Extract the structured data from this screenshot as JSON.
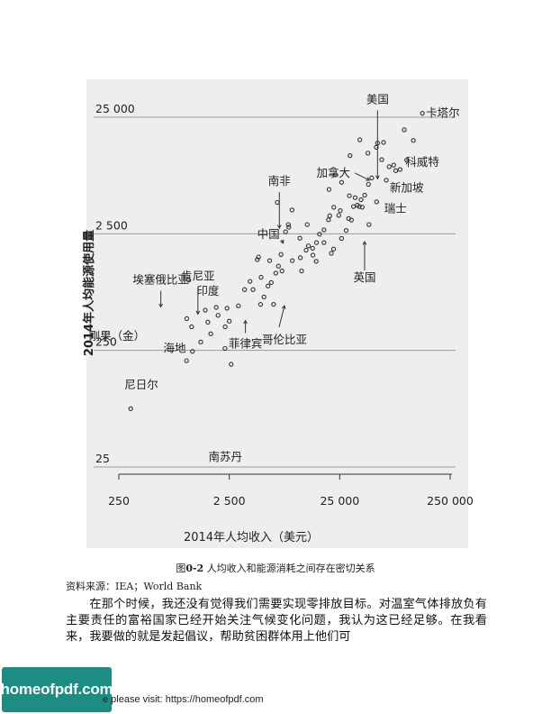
{
  "figure": {
    "caption_prefix": "图",
    "caption_number": "0-2",
    "caption_text": " 人均收入和能源消耗之间存在密切关系",
    "source": "资料来源：IEA；World Bank"
  },
  "chart_data": {
    "type": "scatter",
    "xlabel": "2014年人均收入（美元）",
    "ylabel": "2014年人均能源使用量",
    "x_scale": "log",
    "y_scale": "log",
    "xlim": [
      250,
      250000
    ],
    "ylim": [
      25,
      25000
    ],
    "x_ticks": [
      250,
      2500,
      25000,
      250000
    ],
    "y_ticks": [
      25,
      250,
      2500,
      25000
    ],
    "x_tick_labels": [
      "250",
      "2 500",
      "25 000",
      "250 000"
    ],
    "y_tick_labels": [
      "25",
      "250",
      "2 500",
      "25 000"
    ],
    "grid": "horizontal",
    "points": [
      [
        1074,
        1000
      ],
      [
        320,
        79
      ],
      [
        1030,
        468
      ],
      [
        1515,
        553
      ],
      [
        1905,
        585
      ],
      [
        3025,
        603
      ],
      [
        2385,
        575
      ],
      [
        1978,
        500
      ],
      [
        2295,
        398
      ],
      [
        1700,
        347
      ],
      [
        1160,
        245
      ],
      [
        1140,
        398
      ],
      [
        1600,
        436
      ],
      [
        1380,
        295
      ],
      [
        1025,
        204
      ],
      [
        2285,
        260
      ],
      [
        2600,
        190
      ],
      [
        2500,
        445
      ],
      [
        4850,
        1059
      ],
      [
        6300,
        620
      ],
      [
        4480,
        1500
      ],
      [
        4600,
        1580
      ],
      [
        3440,
        831
      ],
      [
        3850,
        977
      ],
      [
        4100,
        831
      ],
      [
        4800,
        620
      ],
      [
        5150,
        718
      ],
      [
        5600,
        891
      ],
      [
        6000,
        955
      ],
      [
        6600,
        1150
      ],
      [
        5800,
        1470
      ],
      [
        6970,
        1320
      ],
      [
        7350,
        1660
      ],
      [
        8080,
        2600
      ],
      [
        8650,
        2850
      ],
      [
        9250,
        4000
      ],
      [
        11000,
        1560
      ],
      [
        12400,
        1810
      ],
      [
        13000,
        1970
      ],
      [
        14200,
        1880
      ],
      [
        15400,
        2100
      ],
      [
        16400,
        2480
      ],
      [
        18000,
        2700
      ],
      [
        19800,
        3300
      ],
      [
        20300,
        3570
      ],
      [
        22100,
        4220
      ],
      [
        24500,
        3600
      ],
      [
        25300,
        3950
      ],
      [
        30100,
        3380
      ],
      [
        30600,
        5300
      ],
      [
        31900,
        3280
      ],
      [
        34500,
        5100
      ],
      [
        36100,
        4400
      ],
      [
        37600,
        4280
      ],
      [
        40000,
        4230
      ],
      [
        42100,
        5360
      ],
      [
        45500,
        6640
      ],
      [
        48700,
        7540
      ],
      [
        53600,
        13800
      ],
      [
        62300,
        15200
      ],
      [
        70100,
        9400
      ],
      [
        80400,
        8700
      ],
      [
        88000,
        8900
      ],
      [
        96000,
        19500
      ],
      [
        8560,
        3000
      ],
      [
        6800,
        4650
      ],
      [
        12700,
        3000
      ],
      [
        10900,
        2290
      ],
      [
        7500,
        1200
      ],
      [
        9300,
        1470
      ],
      [
        18000,
        2100
      ],
      [
        21000,
        1700
      ],
      [
        15300,
        1450
      ],
      [
        11300,
        1200
      ],
      [
        14300,
        1640
      ],
      [
        26000,
        2280
      ],
      [
        28600,
        2670
      ],
      [
        33300,
        4280
      ],
      [
        39000,
        4900
      ],
      [
        22000,
        1850
      ],
      [
        46000,
        3000
      ],
      [
        54000,
        4700
      ],
      [
        26000,
        6900
      ],
      [
        60000,
        10800
      ],
      [
        66000,
        7200
      ],
      [
        77000,
        9700
      ],
      [
        45000,
        12300
      ],
      [
        38000,
        16000
      ],
      [
        31000,
        11700
      ],
      [
        23000,
        8000
      ],
      [
        20000,
        6000
      ],
      [
        55000,
        15000
      ],
      [
        101000,
        10700
      ],
      [
        116000,
        15800
      ],
      [
        140000,
        27000
      ]
    ],
    "annotations": [
      {
        "label": "美国",
        "x": 55000,
        "y": 6900
      },
      {
        "label": "卡塔尔",
        "x": 140000,
        "y": 27000
      },
      {
        "label": "科威特",
        "x": 88000,
        "y": 8900
      },
      {
        "label": "加拿大",
        "x": 50000,
        "y": 6700
      },
      {
        "label": "南非",
        "x": 7100,
        "y": 2600
      },
      {
        "label": "新加坡",
        "x": 101000,
        "y": 5000
      },
      {
        "label": "中国",
        "x": 8000,
        "y": 2000
      },
      {
        "label": "瑞士",
        "x": 80000,
        "y": 4100
      },
      {
        "label": "印度",
        "x": 1600,
        "y": 650
      },
      {
        "label": "英国",
        "x": 42000,
        "y": 2300
      },
      {
        "label": "埃塞俄比亚",
        "x": 600,
        "y": 530
      },
      {
        "label": "肯尼亚",
        "x": 1300,
        "y": 460
      },
      {
        "label": "刚果（金）",
        "x": 440,
        "y": 330
      },
      {
        "label": "海地",
        "x": 800,
        "y": 400
      },
      {
        "label": "菲律宾",
        "x": 3500,
        "y": 420
      },
      {
        "label": "哥伦比亚",
        "x": 7900,
        "y": 650
      },
      {
        "label": "尼日尔",
        "x": 400,
        "y": 200
      },
      {
        "label": "南苏丹",
        "x": 2300,
        "y": 52
      }
    ]
  },
  "body": {
    "paragraph": "在那个时候，我还没有觉得我们需要实现零排放目标。对温室气体排放负有主要责任的富裕国家已经开始关注气候变化问题，我认为这已经足够。在我看来，我要做的就是发起倡议，帮助贫困群体用上他们可"
  },
  "watermark": {
    "logo": "homeofpdf.com",
    "note": "e please visit: https://homeofpdf.com"
  }
}
